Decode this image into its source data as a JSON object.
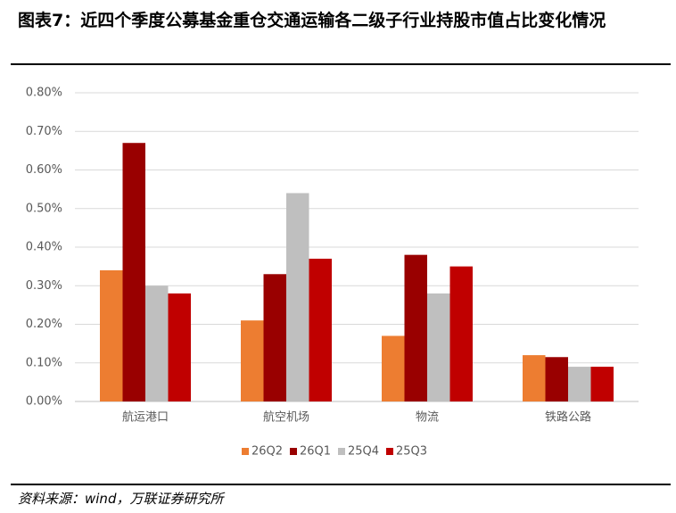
{
  "title": "图表7：近四个季度公募基金重仓交通运输各二级子行业持股市值占比变化情况",
  "source": "资料来源：wind，万联证券研究所",
  "chart_data": {
    "type": "bar",
    "categories": [
      "航运港口",
      "航空机场",
      "物流",
      "铁路公路"
    ],
    "series": [
      {
        "name": "26Q2",
        "color": "#ed7d31",
        "values": [
          0.34,
          0.21,
          0.17,
          0.12
        ]
      },
      {
        "name": "26Q1",
        "color": "#990000",
        "values": [
          0.67,
          0.33,
          0.38,
          0.115
        ]
      },
      {
        "name": "25Q4",
        "color": "#bfbfbf",
        "values": [
          0.3,
          0.54,
          0.28,
          0.09
        ]
      },
      {
        "name": "25Q3",
        "color": "#c00000",
        "values": [
          0.28,
          0.37,
          0.35,
          0.09
        ]
      }
    ],
    "ylim": [
      0,
      0.8
    ],
    "yticks": [
      {
        "value": 0,
        "label": "0.00%"
      },
      {
        "value": 0.1,
        "label": "0.10%"
      },
      {
        "value": 0.2,
        "label": "0.20%"
      },
      {
        "value": 0.3,
        "label": "0.30%"
      },
      {
        "value": 0.4,
        "label": "0.40%"
      },
      {
        "value": 0.5,
        "label": "0.50%"
      },
      {
        "value": 0.6,
        "label": "0.60%"
      },
      {
        "value": 0.7,
        "label": "0.70%"
      },
      {
        "value": 0.8,
        "label": "0.80%"
      }
    ],
    "grid": true,
    "legend": "bottom"
  }
}
